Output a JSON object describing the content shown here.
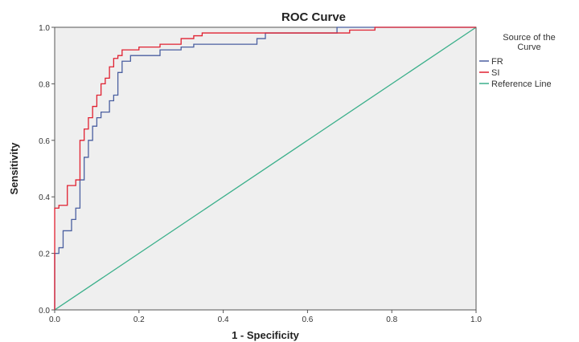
{
  "chart_data": {
    "type": "line",
    "title": "ROC Curve",
    "xlabel": "1 - Specificity",
    "ylabel": "Sensitivity",
    "xlim": [
      0.0,
      1.0
    ],
    "ylim": [
      0.0,
      1.0
    ],
    "x_ticks": [
      "0.0",
      "0.2",
      "0.4",
      "0.6",
      "0.8",
      "1.0"
    ],
    "y_ticks": [
      "0.0",
      "0.2",
      "0.4",
      "0.6",
      "0.8",
      "1.0"
    ],
    "grid": false,
    "legend": {
      "title": "Source of the Curve",
      "placement": "right",
      "entries": [
        "FR",
        "SI",
        "Reference Line"
      ]
    },
    "series": [
      {
        "name": "FR",
        "color": "#4a5fa0",
        "points": [
          [
            0.0,
            0.0
          ],
          [
            0.0,
            0.2
          ],
          [
            0.01,
            0.2
          ],
          [
            0.01,
            0.22
          ],
          [
            0.02,
            0.22
          ],
          [
            0.02,
            0.28
          ],
          [
            0.04,
            0.28
          ],
          [
            0.04,
            0.32
          ],
          [
            0.05,
            0.32
          ],
          [
            0.05,
            0.36
          ],
          [
            0.06,
            0.36
          ],
          [
            0.06,
            0.46
          ],
          [
            0.07,
            0.46
          ],
          [
            0.07,
            0.54
          ],
          [
            0.08,
            0.54
          ],
          [
            0.08,
            0.6
          ],
          [
            0.09,
            0.6
          ],
          [
            0.09,
            0.65
          ],
          [
            0.1,
            0.65
          ],
          [
            0.1,
            0.68
          ],
          [
            0.11,
            0.68
          ],
          [
            0.11,
            0.7
          ],
          [
            0.13,
            0.7
          ],
          [
            0.13,
            0.74
          ],
          [
            0.14,
            0.74
          ],
          [
            0.14,
            0.76
          ],
          [
            0.15,
            0.76
          ],
          [
            0.15,
            0.84
          ],
          [
            0.16,
            0.84
          ],
          [
            0.16,
            0.88
          ],
          [
            0.18,
            0.88
          ],
          [
            0.18,
            0.9
          ],
          [
            0.25,
            0.9
          ],
          [
            0.25,
            0.92
          ],
          [
            0.3,
            0.92
          ],
          [
            0.3,
            0.93
          ],
          [
            0.33,
            0.93
          ],
          [
            0.33,
            0.94
          ],
          [
            0.48,
            0.94
          ],
          [
            0.48,
            0.96
          ],
          [
            0.5,
            0.96
          ],
          [
            0.5,
            0.98
          ],
          [
            0.67,
            0.98
          ],
          [
            0.67,
            1.0
          ],
          [
            1.0,
            1.0
          ]
        ]
      },
      {
        "name": "SI",
        "color": "#e02030",
        "points": [
          [
            0.0,
            0.0
          ],
          [
            0.0,
            0.36
          ],
          [
            0.01,
            0.36
          ],
          [
            0.01,
            0.37
          ],
          [
            0.03,
            0.37
          ],
          [
            0.03,
            0.44
          ],
          [
            0.05,
            0.44
          ],
          [
            0.05,
            0.46
          ],
          [
            0.06,
            0.46
          ],
          [
            0.06,
            0.6
          ],
          [
            0.07,
            0.6
          ],
          [
            0.07,
            0.64
          ],
          [
            0.08,
            0.64
          ],
          [
            0.08,
            0.68
          ],
          [
            0.09,
            0.68
          ],
          [
            0.09,
            0.72
          ],
          [
            0.1,
            0.72
          ],
          [
            0.1,
            0.76
          ],
          [
            0.11,
            0.76
          ],
          [
            0.11,
            0.8
          ],
          [
            0.12,
            0.8
          ],
          [
            0.12,
            0.82
          ],
          [
            0.13,
            0.82
          ],
          [
            0.13,
            0.86
          ],
          [
            0.14,
            0.86
          ],
          [
            0.14,
            0.89
          ],
          [
            0.15,
            0.89
          ],
          [
            0.15,
            0.9
          ],
          [
            0.16,
            0.9
          ],
          [
            0.16,
            0.92
          ],
          [
            0.2,
            0.92
          ],
          [
            0.2,
            0.93
          ],
          [
            0.25,
            0.93
          ],
          [
            0.25,
            0.94
          ],
          [
            0.3,
            0.94
          ],
          [
            0.3,
            0.96
          ],
          [
            0.33,
            0.96
          ],
          [
            0.33,
            0.97
          ],
          [
            0.35,
            0.97
          ],
          [
            0.35,
            0.98
          ],
          [
            0.7,
            0.98
          ],
          [
            0.7,
            0.99
          ],
          [
            0.76,
            0.99
          ],
          [
            0.76,
            1.0
          ],
          [
            1.0,
            1.0
          ]
        ]
      },
      {
        "name": "Reference Line",
        "color": "#3aaf8a",
        "points": [
          [
            0.0,
            0.0
          ],
          [
            1.0,
            1.0
          ]
        ]
      }
    ]
  }
}
